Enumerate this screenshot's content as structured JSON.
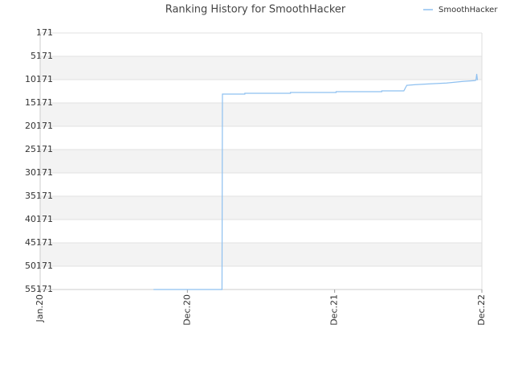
{
  "chart_data": {
    "type": "line",
    "title": "Ranking History for SmoothHacker",
    "x": [
      0.77,
      1.235,
      1.238,
      1.39,
      1.39,
      1.7,
      1.7,
      2.01,
      2.01,
      2.32,
      2.32,
      2.47,
      2.49,
      2.55,
      2.65,
      2.76,
      2.87,
      2.95,
      2.96,
      2.965,
      2.97
    ],
    "series": [
      {
        "name": "SmoothHacker",
        "color": "#8ec0f0",
        "values": [
          55171,
          55171,
          13274,
          13274,
          13100,
          13100,
          12930,
          12930,
          12760,
          12760,
          12585,
          12585,
          11400,
          11250,
          11080,
          10900,
          10560,
          10390,
          10300,
          8960,
          10300
        ]
      }
    ],
    "xlim": [
      0,
      3
    ],
    "xticks": [
      {
        "value": 0,
        "label": "Jan.20"
      },
      {
        "value": 1,
        "label": "Dec.20"
      },
      {
        "value": 2,
        "label": "Dec.21"
      },
      {
        "value": 3,
        "label": "Dec.22"
      }
    ],
    "ylim": [
      55171,
      171
    ],
    "yticks": [
      171,
      5171,
      10171,
      15171,
      20171,
      25171,
      30171,
      35171,
      40171,
      45171,
      50171,
      55171
    ],
    "y_inverted": true,
    "grid": true,
    "legend": "top-right"
  }
}
